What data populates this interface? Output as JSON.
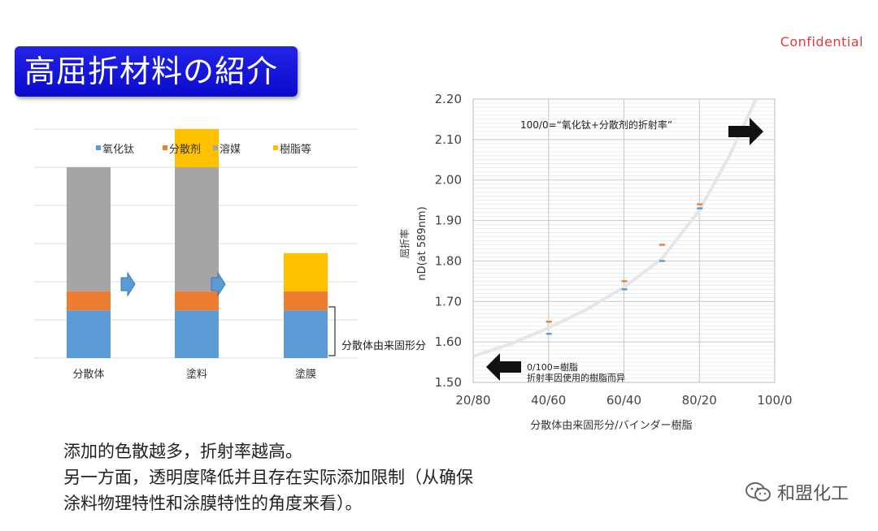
{
  "header": {
    "confidential": "Confidential",
    "title": "高屈折材料の紹介"
  },
  "left_chart": {
    "legend": [
      "氧化钛",
      "分散剂",
      "溶媒",
      "樹脂等"
    ],
    "categories": [
      "分散体",
      "塗料",
      "塗膜"
    ],
    "bracket_label": "分散体由来固形分"
  },
  "right_chart": {
    "ylabel_line1": "屈折率",
    "ylabel_line2": "nD(at 589nm)",
    "xlabel": "分散体由来固形分/バインダー樹脂",
    "annotation_top": "100/0=“氧化钛+分散剂的折射率”",
    "annotation_bottom_1": "0/100=樹脂",
    "annotation_bottom_2": "折射率因使用的樹脂而异"
  },
  "chart_data": [
    {
      "type": "bar",
      "stacked": true,
      "categories": [
        "分散体",
        "塗料",
        "塗膜"
      ],
      "series": [
        {
          "name": "氧化钛",
          "values": [
            25,
            25,
            25
          ],
          "color": "#5b9bd5"
        },
        {
          "name": "分散剂",
          "values": [
            10,
            10,
            10
          ],
          "color": "#ed7d31"
        },
        {
          "name": "溶媒",
          "values": [
            65,
            65,
            0
          ],
          "color": "#a5a5a5"
        },
        {
          "name": "樹脂等",
          "values": [
            0,
            20,
            20
          ],
          "color": "#ffc000"
        }
      ],
      "ylim": [
        0,
        120
      ],
      "grid": true,
      "legend": "top"
    },
    {
      "type": "scatter",
      "x_ticks": [
        "20/80",
        "40/60",
        "60/40",
        "80/20",
        "100/0"
      ],
      "y_ticks": [
        "1.50",
        "1.60",
        "1.70",
        "1.80",
        "1.90",
        "2.00",
        "2.10",
        "2.20"
      ],
      "ylim": [
        1.5,
        2.2
      ],
      "xlim": [
        20,
        100
      ],
      "series": [
        {
          "name": "orange",
          "color": "#ed7d31",
          "x": [
            40,
            60,
            70,
            80
          ],
          "y": [
            1.65,
            1.75,
            1.84,
            1.94
          ]
        },
        {
          "name": "blue",
          "color": "#5b9bd5",
          "x": [
            40,
            60,
            70,
            80
          ],
          "y": [
            1.62,
            1.73,
            1.8,
            1.93
          ]
        }
      ],
      "trend": {
        "x": [
          20,
          30,
          40,
          50,
          60,
          70,
          80,
          88,
          95
        ],
        "y": [
          1.565,
          1.595,
          1.635,
          1.68,
          1.735,
          1.805,
          1.925,
          2.06,
          2.2
        ]
      },
      "grid": true
    }
  ],
  "body": {
    "line1": "添加的色散越多，折射率越高。",
    "line2": "另一方面，透明度降低并且存在实际添加限制（从确保",
    "line3": "涂料物理特性和涂膜特性的角度来看）。"
  },
  "watermark": {
    "text": "和盟化工",
    "icon": "wechat-icon"
  }
}
